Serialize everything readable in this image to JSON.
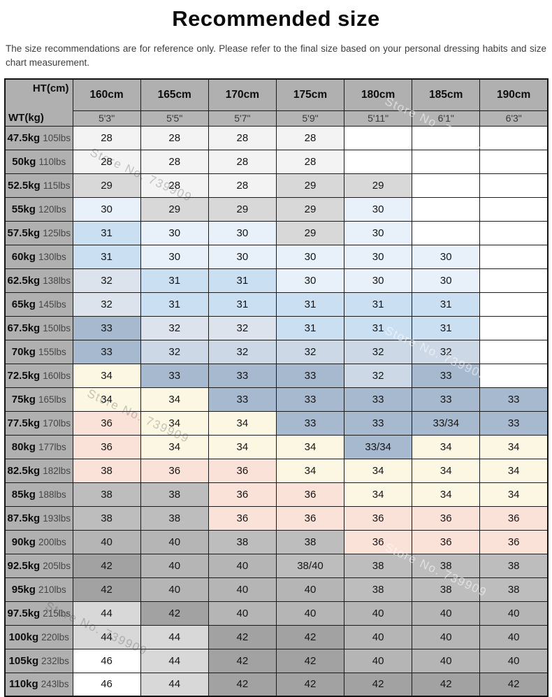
{
  "page": {
    "title": "Recommended size",
    "description": "The size recommendations are for reference only. Please refer to the final size based on your personal dressing habits and size chart measurement."
  },
  "watermark": {
    "text": "Store No. 739909"
  },
  "colors": {
    "header_bg": "#b0b0b0",
    "subheader_bg": "#b4b4b4",
    "border": "#1b1b1b",
    "palette": {
      "g1": "#f3f3f3",
      "g2": "#d8d8d8",
      "g3": "#bdbdbd",
      "g4": "#b5b5b5",
      "g5": "#a2a2a2",
      "b1": "#e8f1f9",
      "b2": "#cbdff3",
      "b3": "#dce3ed",
      "b4": "#ccd8e6",
      "b5": "#a7b9ce",
      "cr": "#fcf7e2",
      "pk": "#fae2d9",
      "wh": "#ffffff"
    }
  },
  "chart_data": {
    "type": "table",
    "corner": {
      "top_right": "HT(cm)",
      "bottom_left": "WT(kg)"
    },
    "height_columns": [
      {
        "cm": "160cm",
        "ft": "5'3\""
      },
      {
        "cm": "165cm",
        "ft": "5'5\""
      },
      {
        "cm": "170cm",
        "ft": "5'7\""
      },
      {
        "cm": "175cm",
        "ft": "5'9\""
      },
      {
        "cm": "180cm",
        "ft": "5'11\""
      },
      {
        "cm": "185cm",
        "ft": "6'1\""
      },
      {
        "cm": "190cm",
        "ft": "6'3\""
      }
    ],
    "rows": [
      {
        "kg": "47.5kg",
        "lbs": "105lbs",
        "cells": [
          [
            "28",
            "g1"
          ],
          [
            "28",
            "g1"
          ],
          [
            "28",
            "g1"
          ],
          [
            "28",
            "g1"
          ],
          null,
          null,
          null
        ]
      },
      {
        "kg": "50kg",
        "lbs": "110lbs",
        "cells": [
          [
            "28",
            "g1"
          ],
          [
            "28",
            "g1"
          ],
          [
            "28",
            "g1"
          ],
          [
            "28",
            "g1"
          ],
          null,
          null,
          null
        ]
      },
      {
        "kg": "52.5kg",
        "lbs": "115lbs",
        "cells": [
          [
            "29",
            "g2"
          ],
          [
            "28",
            "g1"
          ],
          [
            "28",
            "g1"
          ],
          [
            "29",
            "g2"
          ],
          [
            "29",
            "g2"
          ],
          null,
          null
        ]
      },
      {
        "kg": "55kg",
        "lbs": "120lbs",
        "cells": [
          [
            "30",
            "b1"
          ],
          [
            "29",
            "g2"
          ],
          [
            "29",
            "g2"
          ],
          [
            "29",
            "g2"
          ],
          [
            "30",
            "b1"
          ],
          null,
          null
        ]
      },
      {
        "kg": "57.5kg",
        "lbs": "125lbs",
        "cells": [
          [
            "31",
            "b2"
          ],
          [
            "30",
            "b1"
          ],
          [
            "30",
            "b1"
          ],
          [
            "29",
            "g2"
          ],
          [
            "30",
            "b1"
          ],
          null,
          null
        ]
      },
      {
        "kg": "60kg",
        "lbs": "130lbs",
        "cells": [
          [
            "31",
            "b2"
          ],
          [
            "30",
            "b1"
          ],
          [
            "30",
            "b1"
          ],
          [
            "30",
            "b1"
          ],
          [
            "30",
            "b1"
          ],
          [
            "30",
            "b1"
          ],
          null
        ]
      },
      {
        "kg": "62.5kg",
        "lbs": "138lbs",
        "cells": [
          [
            "32",
            "b3"
          ],
          [
            "31",
            "b2"
          ],
          [
            "31",
            "b2"
          ],
          [
            "30",
            "b1"
          ],
          [
            "30",
            "b1"
          ],
          [
            "30",
            "b1"
          ],
          null
        ]
      },
      {
        "kg": "65kg",
        "lbs": "145lbs",
        "cells": [
          [
            "32",
            "b3"
          ],
          [
            "31",
            "b2"
          ],
          [
            "31",
            "b2"
          ],
          [
            "31",
            "b2"
          ],
          [
            "31",
            "b2"
          ],
          [
            "31",
            "b2"
          ],
          null
        ]
      },
      {
        "kg": "67.5kg",
        "lbs": "150lbs",
        "cells": [
          [
            "33",
            "b5"
          ],
          [
            "32",
            "b3"
          ],
          [
            "32",
            "b3"
          ],
          [
            "31",
            "b2"
          ],
          [
            "31",
            "b2"
          ],
          [
            "31",
            "b2"
          ],
          null
        ]
      },
      {
        "kg": "70kg",
        "lbs": "155lbs",
        "cells": [
          [
            "33",
            "b5"
          ],
          [
            "32",
            "b4"
          ],
          [
            "32",
            "b4"
          ],
          [
            "32",
            "b4"
          ],
          [
            "32",
            "b4"
          ],
          [
            "32",
            "b4"
          ],
          null
        ]
      },
      {
        "kg": "72.5kg",
        "lbs": "160lbs",
        "cells": [
          [
            "34",
            "cr"
          ],
          [
            "33",
            "b5"
          ],
          [
            "33",
            "b5"
          ],
          [
            "33",
            "b5"
          ],
          [
            "32",
            "b4"
          ],
          [
            "33",
            "b5"
          ],
          null
        ]
      },
      {
        "kg": "75kg",
        "lbs": "165lbs",
        "cells": [
          [
            "34",
            "cr"
          ],
          [
            "34",
            "cr"
          ],
          [
            "33",
            "b5"
          ],
          [
            "33",
            "b5"
          ],
          [
            "33",
            "b5"
          ],
          [
            "33",
            "b5"
          ],
          [
            "33",
            "b5"
          ]
        ]
      },
      {
        "kg": "77.5kg",
        "lbs": "170lbs",
        "cells": [
          [
            "36",
            "pk"
          ],
          [
            "34",
            "cr"
          ],
          [
            "34",
            "cr"
          ],
          [
            "33",
            "b5"
          ],
          [
            "33",
            "b5"
          ],
          [
            "33/34",
            "b5"
          ],
          [
            "33",
            "b5"
          ]
        ]
      },
      {
        "kg": "80kg",
        "lbs": "177lbs",
        "cells": [
          [
            "36",
            "pk"
          ],
          [
            "34",
            "cr"
          ],
          [
            "34",
            "cr"
          ],
          [
            "34",
            "cr"
          ],
          [
            "33/34",
            "b5"
          ],
          [
            "34",
            "cr"
          ],
          [
            "34",
            "cr"
          ]
        ]
      },
      {
        "kg": "82.5kg",
        "lbs": "182lbs",
        "cells": [
          [
            "38",
            "pk"
          ],
          [
            "36",
            "pk"
          ],
          [
            "36",
            "pk"
          ],
          [
            "34",
            "cr"
          ],
          [
            "34",
            "cr"
          ],
          [
            "34",
            "cr"
          ],
          [
            "34",
            "cr"
          ]
        ]
      },
      {
        "kg": "85kg",
        "lbs": "188lbs",
        "cells": [
          [
            "38",
            "g3"
          ],
          [
            "38",
            "g3"
          ],
          [
            "36",
            "pk"
          ],
          [
            "36",
            "pk"
          ],
          [
            "34",
            "cr"
          ],
          [
            "34",
            "cr"
          ],
          [
            "34",
            "cr"
          ]
        ]
      },
      {
        "kg": "87.5kg",
        "lbs": "193lbs",
        "cells": [
          [
            "38",
            "g3"
          ],
          [
            "38",
            "g3"
          ],
          [
            "36",
            "pk"
          ],
          [
            "36",
            "pk"
          ],
          [
            "36",
            "pk"
          ],
          [
            "36",
            "pk"
          ],
          [
            "36",
            "pk"
          ]
        ]
      },
      {
        "kg": "90kg",
        "lbs": "200lbs",
        "cells": [
          [
            "40",
            "g4"
          ],
          [
            "40",
            "g4"
          ],
          [
            "38",
            "g3"
          ],
          [
            "38",
            "g3"
          ],
          [
            "36",
            "pk"
          ],
          [
            "36",
            "pk"
          ],
          [
            "36",
            "pk"
          ]
        ]
      },
      {
        "kg": "92.5kg",
        "lbs": "205lbs",
        "cells": [
          [
            "42",
            "g5"
          ],
          [
            "40",
            "g4"
          ],
          [
            "40",
            "g4"
          ],
          [
            "38/40",
            "g3"
          ],
          [
            "38",
            "g3"
          ],
          [
            "38",
            "g3"
          ],
          [
            "38",
            "g3"
          ]
        ]
      },
      {
        "kg": "95kg",
        "lbs": "210lbs",
        "cells": [
          [
            "42",
            "g5"
          ],
          [
            "40",
            "g4"
          ],
          [
            "40",
            "g4"
          ],
          [
            "40",
            "g4"
          ],
          [
            "38",
            "g3"
          ],
          [
            "38",
            "g3"
          ],
          [
            "38",
            "g3"
          ]
        ]
      },
      {
        "kg": "97.5kg",
        "lbs": "215lbs",
        "cells": [
          [
            "44",
            "g2"
          ],
          [
            "42",
            "g5"
          ],
          [
            "40",
            "g4"
          ],
          [
            "40",
            "g4"
          ],
          [
            "40",
            "g4"
          ],
          [
            "40",
            "g4"
          ],
          [
            "40",
            "g4"
          ]
        ]
      },
      {
        "kg": "100kg",
        "lbs": "220lbs",
        "cells": [
          [
            "44",
            "g2"
          ],
          [
            "44",
            "g2"
          ],
          [
            "42",
            "g5"
          ],
          [
            "42",
            "g5"
          ],
          [
            "40",
            "g4"
          ],
          [
            "40",
            "g4"
          ],
          [
            "40",
            "g4"
          ]
        ]
      },
      {
        "kg": "105kg",
        "lbs": "232lbs",
        "cells": [
          [
            "46",
            "wh"
          ],
          [
            "44",
            "g2"
          ],
          [
            "42",
            "g5"
          ],
          [
            "42",
            "g5"
          ],
          [
            "40",
            "g4"
          ],
          [
            "40",
            "g4"
          ],
          [
            "40",
            "g4"
          ]
        ]
      },
      {
        "kg": "110kg",
        "lbs": "243lbs",
        "cells": [
          [
            "46",
            "wh"
          ],
          [
            "44",
            "g2"
          ],
          [
            "42",
            "g5"
          ],
          [
            "42",
            "g5"
          ],
          [
            "42",
            "g5"
          ],
          [
            "42",
            "g5"
          ],
          [
            "42",
            "g5"
          ]
        ]
      }
    ]
  }
}
